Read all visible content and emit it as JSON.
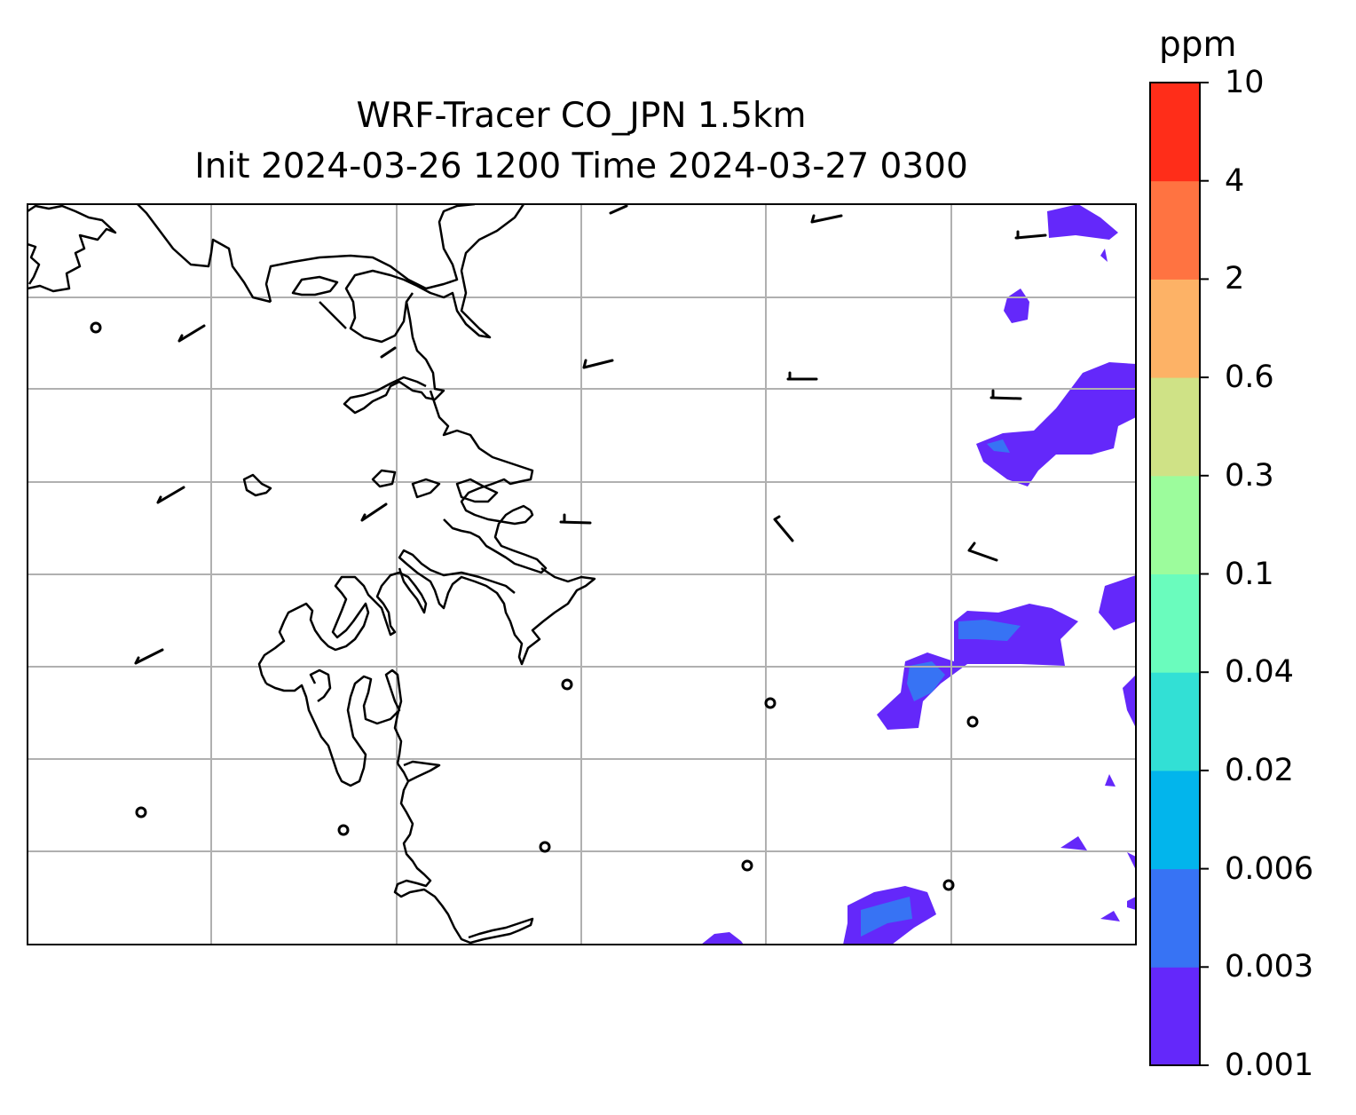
{
  "title": {
    "line1": "WRF-Tracer CO_JPN 1.5km",
    "line2": "Init 2024-03-26 1200 Time 2024-03-27 0300"
  },
  "colorbar": {
    "unit": "ppm",
    "levels": [
      "0.001",
      "0.003",
      "0.006",
      "0.02",
      "0.04",
      "0.1",
      "0.3",
      "0.6",
      "2",
      "4",
      "10"
    ],
    "colors": [
      "#6428fa",
      "#3773f4",
      "#02b5ec",
      "#32e0d5",
      "#6afcbd",
      "#9cfc9c",
      "#cfe286",
      "#fdb266",
      "#ff7341",
      "#ff2d19"
    ]
  },
  "map": {
    "gridlines": true,
    "grid_color": "#b0b0b0",
    "coastline_color": "#000000",
    "field": "CO tracer concentration",
    "wind_barbs": true
  }
}
